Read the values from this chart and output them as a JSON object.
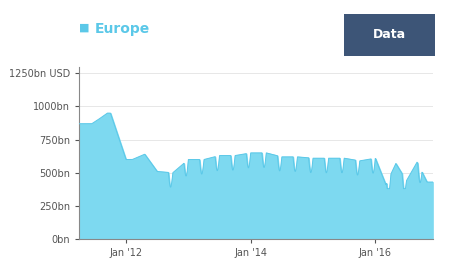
{
  "title": "Europe",
  "title_color": "#5bc8e8",
  "title_square_color": "#5bc8e8",
  "fill_color": "#7dd9f0",
  "line_color": "#5bc8e8",
  "background_color": "#ffffff",
  "data_button_color": "#3d5577",
  "data_button_text": "Data",
  "yticks": [
    0,
    250,
    500,
    750,
    1000,
    1250
  ],
  "ytick_labels": [
    "0bn",
    "250bn",
    "500bn",
    "750bn",
    "1000bn",
    "1250bn USD"
  ],
  "xtick_labels": [
    "Jan '12",
    "Jan '14",
    "Jan '16"
  ],
  "xtick_positions": [
    2012.0,
    2014.0,
    2016.0
  ],
  "ymin": 0,
  "ymax": 1300,
  "start_year": 2011.25,
  "end_year": 2016.92
}
